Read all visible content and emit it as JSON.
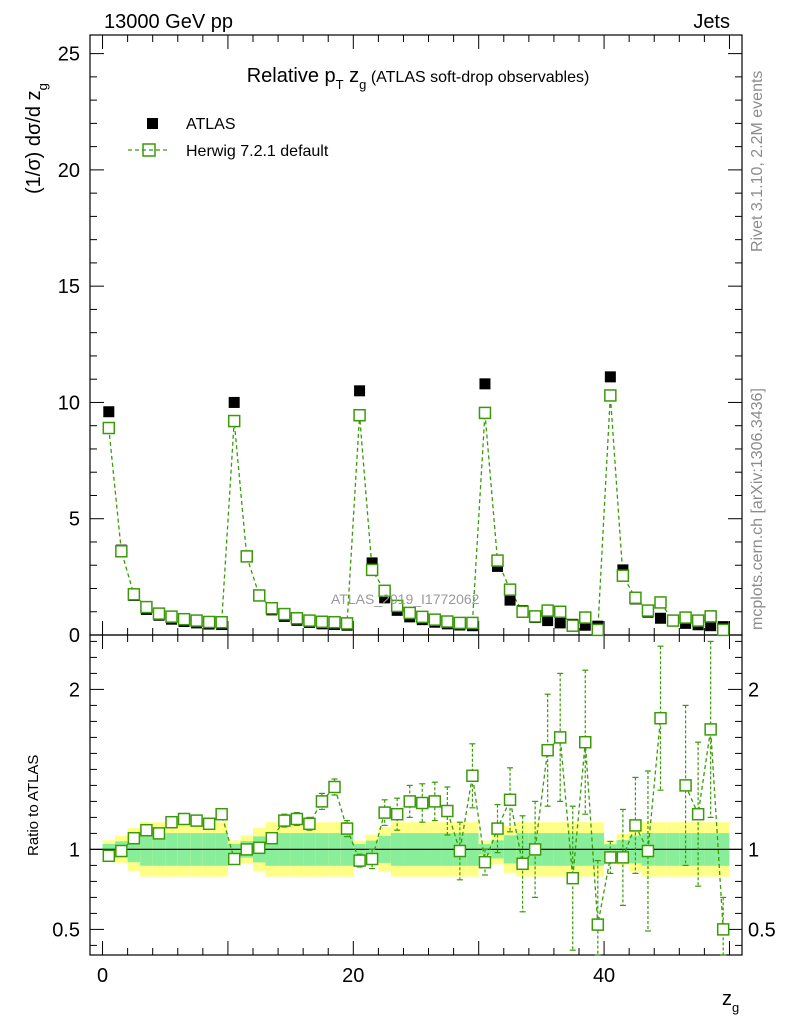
{
  "header": {
    "left": "13000 GeV pp",
    "right": "Jets"
  },
  "side_labels": {
    "top": "Rivet 3.1.10,  2.2M events",
    "bottom": "mcplots.cern.ch [arXiv:1306.3436]"
  },
  "watermark": "ATLAS_2019_I1772062",
  "colors": {
    "mc": "#3a9a0a",
    "band_inner": "#88ee99",
    "band_outer": "#ffff88",
    "data": "#000000"
  },
  "chart_data": {
    "type": "scatter",
    "title": "Relative pT zg (ATLAS soft-drop observables)",
    "title_parts": {
      "main": "Relative p",
      "sub1": "T",
      "mid": " z",
      "sub2": "g",
      "rest": " (ATLAS soft-drop observables)"
    },
    "xlabel": "zg",
    "xlabel_parts": {
      "main": "z",
      "sub": "g"
    },
    "ylabel": "(1/σ) dσ/d zg",
    "ylabel_parts": {
      "main": "(1/σ) dσ/d z",
      "sub": "g"
    },
    "ratio_ylabel": "Ratio to ATLAS",
    "xlim": [
      -1,
      51
    ],
    "ylim": [
      0,
      25.8
    ],
    "ratio_ylim": [
      0.34,
      2.34
    ],
    "x_ticks": [
      "0",
      "20",
      "40"
    ],
    "y_ticks": [
      "0",
      "5",
      "10",
      "15",
      "20",
      "25"
    ],
    "ratio_ticks": [
      "0.5",
      "1",
      "2"
    ],
    "legend": [
      "ATLAS",
      "Herwig 7.2.1 default"
    ],
    "x": [
      0.5,
      1.5,
      2.5,
      3.5,
      4.5,
      5.5,
      6.5,
      7.5,
      8.5,
      9.5,
      10.5,
      11.5,
      12.5,
      13.5,
      14.5,
      15.5,
      16.5,
      17.5,
      18.5,
      19.5,
      20.5,
      21.5,
      22.5,
      23.5,
      24.5,
      25.5,
      26.5,
      27.5,
      28.5,
      29.5,
      30.5,
      31.5,
      32.5,
      33.5,
      34.5,
      35.5,
      36.5,
      37.5,
      38.5,
      39.5,
      40.5,
      41.5,
      42.5,
      43.5,
      44.5,
      45.5,
      46.5,
      47.5,
      48.5,
      49.5
    ],
    "series": [
      {
        "name": "ATLAS",
        "values": [
          9.6,
          3.65,
          1.7,
          1.1,
          0.85,
          0.68,
          0.58,
          0.52,
          0.47,
          0.45,
          10.0,
          3.4,
          1.68,
          1.08,
          0.8,
          0.63,
          0.54,
          0.48,
          0.45,
          0.42,
          10.5,
          3.1,
          1.6,
          1.06,
          0.78,
          0.66,
          0.55,
          0.48,
          0.43,
          0.4,
          10.8,
          2.95,
          1.5,
          1.05,
          0.75,
          0.62,
          0.52,
          0.46,
          0.42,
          0.38,
          11.1,
          2.8,
          1.55,
          0.98,
          0.72,
          0.6,
          0.5,
          0.44,
          0.4,
          0.36
        ]
      },
      {
        "name": "Herwig 7.2.1 default",
        "values": [
          8.9,
          3.6,
          1.75,
          1.2,
          0.92,
          0.79,
          0.68,
          0.62,
          0.56,
          0.55,
          9.2,
          3.38,
          1.7,
          1.15,
          0.9,
          0.72,
          0.62,
          0.57,
          0.55,
          0.5,
          9.45,
          2.8,
          1.9,
          1.25,
          0.95,
          0.78,
          0.66,
          0.58,
          0.52,
          0.52,
          9.55,
          3.2,
          1.95,
          1.0,
          0.8,
          1.05,
          1.0,
          0.4,
          0.75,
          0.22,
          10.3,
          2.55,
          1.6,
          1.05,
          1.4,
          0.62,
          0.75,
          0.62,
          0.8,
          0.22
        ]
      }
    ],
    "ratio": [
      0.96,
      0.99,
      1.07,
      1.12,
      1.1,
      1.17,
      1.19,
      1.18,
      1.16,
      1.22,
      0.94,
      1.0,
      1.01,
      1.07,
      1.18,
      1.19,
      1.16,
      1.3,
      1.39,
      1.13,
      0.93,
      0.94,
      1.23,
      1.22,
      1.3,
      1.29,
      1.3,
      1.24,
      0.99,
      1.46,
      0.92,
      1.13,
      1.31,
      0.91,
      1.0,
      1.62,
      1.7,
      0.82,
      1.67,
      0.53,
      0.95,
      0.95,
      1.15,
      0.99,
      1.82,
      null,
      1.4,
      1.22,
      1.75,
      0.5
    ],
    "ratio_err": [
      0.03,
      0.03,
      0.03,
      0.03,
      0.03,
      0.03,
      0.03,
      0.03,
      0.03,
      0.03,
      0.03,
      0.03,
      0.03,
      0.03,
      0.04,
      0.04,
      0.04,
      0.05,
      0.05,
      0.05,
      0.04,
      0.06,
      0.08,
      0.1,
      0.1,
      0.12,
      0.12,
      0.15,
      0.18,
      0.2,
      0.08,
      0.15,
      0.2,
      0.3,
      0.3,
      0.35,
      0.4,
      0.45,
      0.45,
      0.4,
      0.1,
      0.3,
      0.3,
      0.5,
      0.45,
      0.4,
      0.5,
      0.45,
      0.55,
      0.2
    ]
  }
}
